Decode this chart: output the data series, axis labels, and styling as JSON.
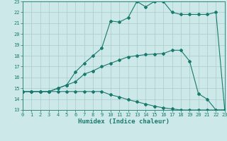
{
  "title": "",
  "xlabel": "Humidex (Indice chaleur)",
  "xlim": [
    0,
    23
  ],
  "ylim": [
    13,
    23
  ],
  "xticks": [
    0,
    1,
    2,
    3,
    4,
    5,
    6,
    7,
    8,
    9,
    10,
    11,
    12,
    13,
    14,
    15,
    16,
    17,
    18,
    19,
    20,
    21,
    22,
    23
  ],
  "yticks": [
    13,
    14,
    15,
    16,
    17,
    18,
    19,
    20,
    21,
    22,
    23
  ],
  "bg_color": "#cce8e8",
  "line_color": "#1a7a6e",
  "grid_color": "#aacccc",
  "line1_x": [
    0,
    1,
    2,
    3,
    4,
    5,
    6,
    7,
    8,
    9,
    10,
    11,
    12,
    13,
    14,
    15,
    16,
    17,
    18,
    19,
    20,
    21,
    22,
    23
  ],
  "line1_y": [
    14.7,
    14.7,
    14.7,
    14.7,
    14.7,
    14.7,
    14.7,
    14.7,
    14.7,
    14.7,
    14.4,
    14.2,
    13.95,
    13.75,
    13.55,
    13.35,
    13.2,
    13.1,
    13.0,
    13.0,
    13.0,
    13.0,
    13.0,
    13.0
  ],
  "line2_x": [
    0,
    1,
    2,
    3,
    4,
    5,
    6,
    7,
    8,
    9,
    10,
    11,
    12,
    13,
    14,
    15,
    16,
    17,
    18,
    19,
    20,
    21,
    22,
    23
  ],
  "line2_y": [
    14.7,
    14.7,
    14.7,
    14.7,
    15.0,
    15.3,
    15.6,
    16.3,
    16.6,
    17.0,
    17.3,
    17.6,
    17.9,
    18.0,
    18.1,
    18.15,
    18.2,
    18.5,
    18.5,
    17.5,
    14.5,
    14.0,
    13.0,
    13.0
  ],
  "line3_x": [
    0,
    1,
    2,
    3,
    4,
    5,
    6,
    7,
    8,
    9,
    10,
    11,
    12,
    13,
    14,
    15,
    16,
    17,
    18,
    19,
    20,
    21,
    22,
    23
  ],
  "line3_y": [
    14.7,
    14.7,
    14.7,
    14.7,
    15.0,
    15.3,
    16.5,
    17.3,
    18.0,
    18.7,
    21.2,
    21.1,
    21.5,
    23.0,
    22.5,
    23.0,
    23.0,
    22.0,
    21.8,
    21.8,
    21.8,
    21.8,
    22.0,
    13.0
  ]
}
